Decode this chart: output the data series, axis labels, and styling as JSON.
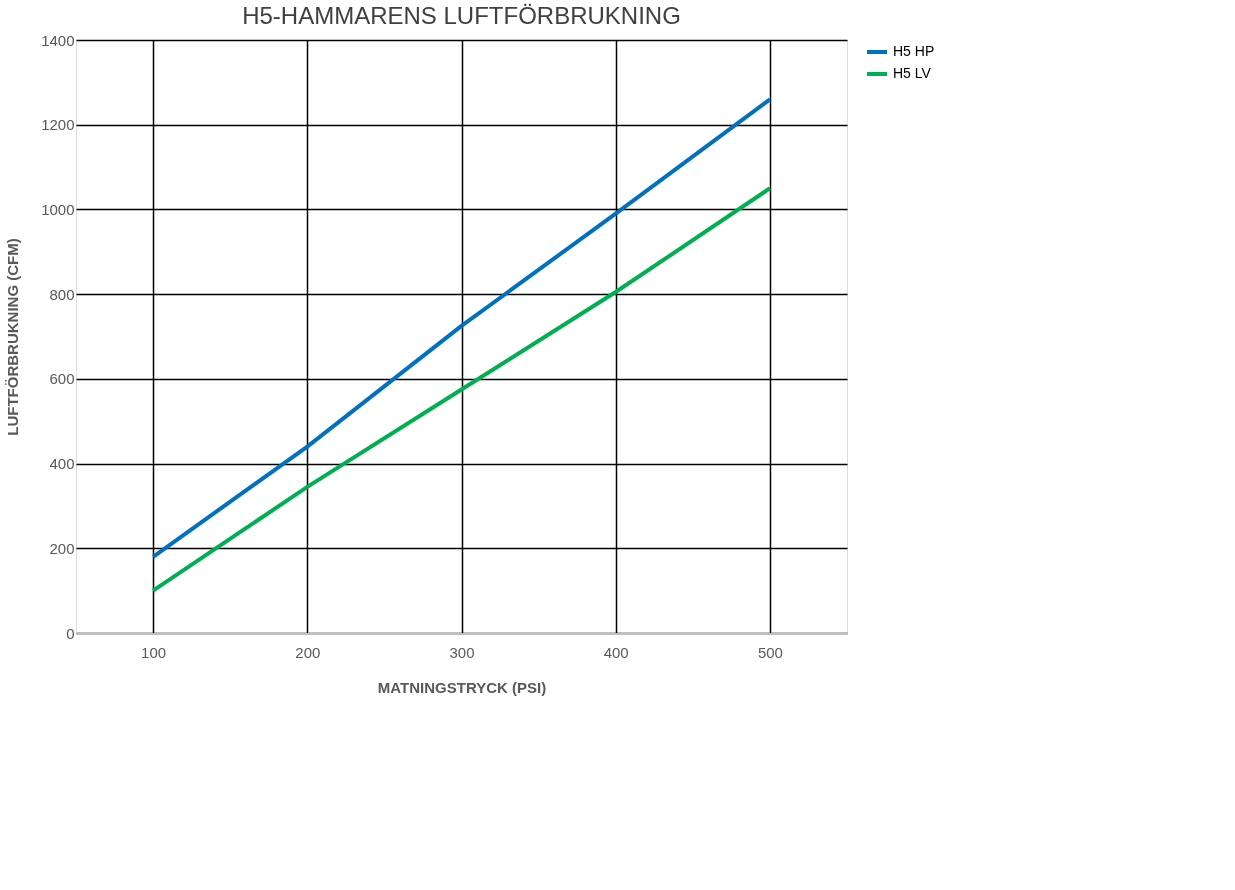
{
  "chart_data": {
    "type": "line",
    "title": "H5-HAMMARENS LUFTFÖRBRUKNING",
    "xlabel": "MATNINGSTRYCK (PSI)",
    "ylabel": "LUFTFÖRBRUKNING (CFM)",
    "x": [
      100,
      200,
      300,
      400,
      500
    ],
    "series": [
      {
        "name": "H5 HP",
        "color": "#0070c0",
        "values": [
          180,
          440,
          725,
          990,
          1260
        ]
      },
      {
        "name": "H5 LV",
        "color": "#00b050",
        "values": [
          100,
          345,
          575,
          805,
          1050
        ]
      }
    ],
    "xlim": [
      50,
      550
    ],
    "xticks": [
      100,
      200,
      300,
      400,
      500
    ],
    "ylim": [
      0,
      1400
    ],
    "yticks": [
      0,
      200,
      400,
      600,
      800,
      1000,
      1200,
      1400
    ],
    "grid": true,
    "legend": "right",
    "marker": "none",
    "line_style": "solid"
  }
}
